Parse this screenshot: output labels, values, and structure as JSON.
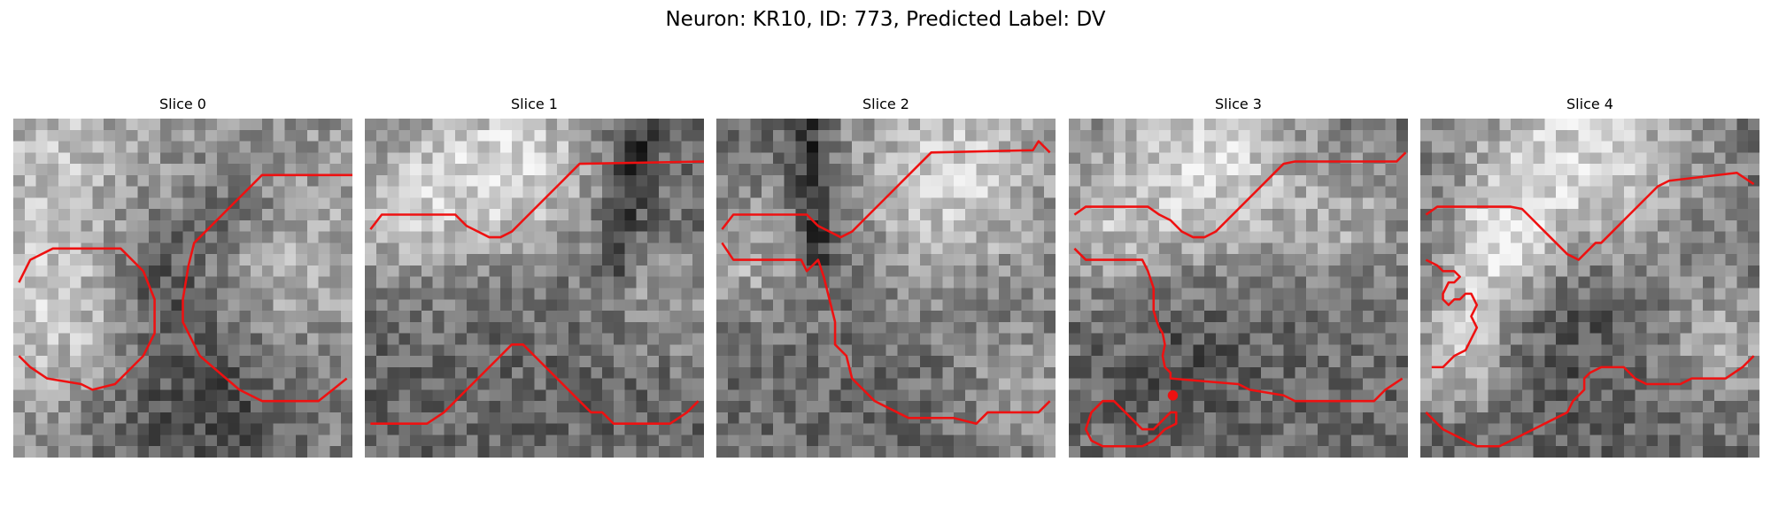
{
  "figure": {
    "title": "Neuron: KR10, ID: 773, Predicted Label: DV"
  },
  "slices": [
    {
      "title": "Slice 0"
    },
    {
      "title": "Slice 1"
    },
    {
      "title": "Slice 2"
    },
    {
      "title": "Slice 3"
    },
    {
      "title": "Slice 4"
    }
  ],
  "colors": {
    "contour": "#ee1111",
    "background": "#ffffff"
  }
}
